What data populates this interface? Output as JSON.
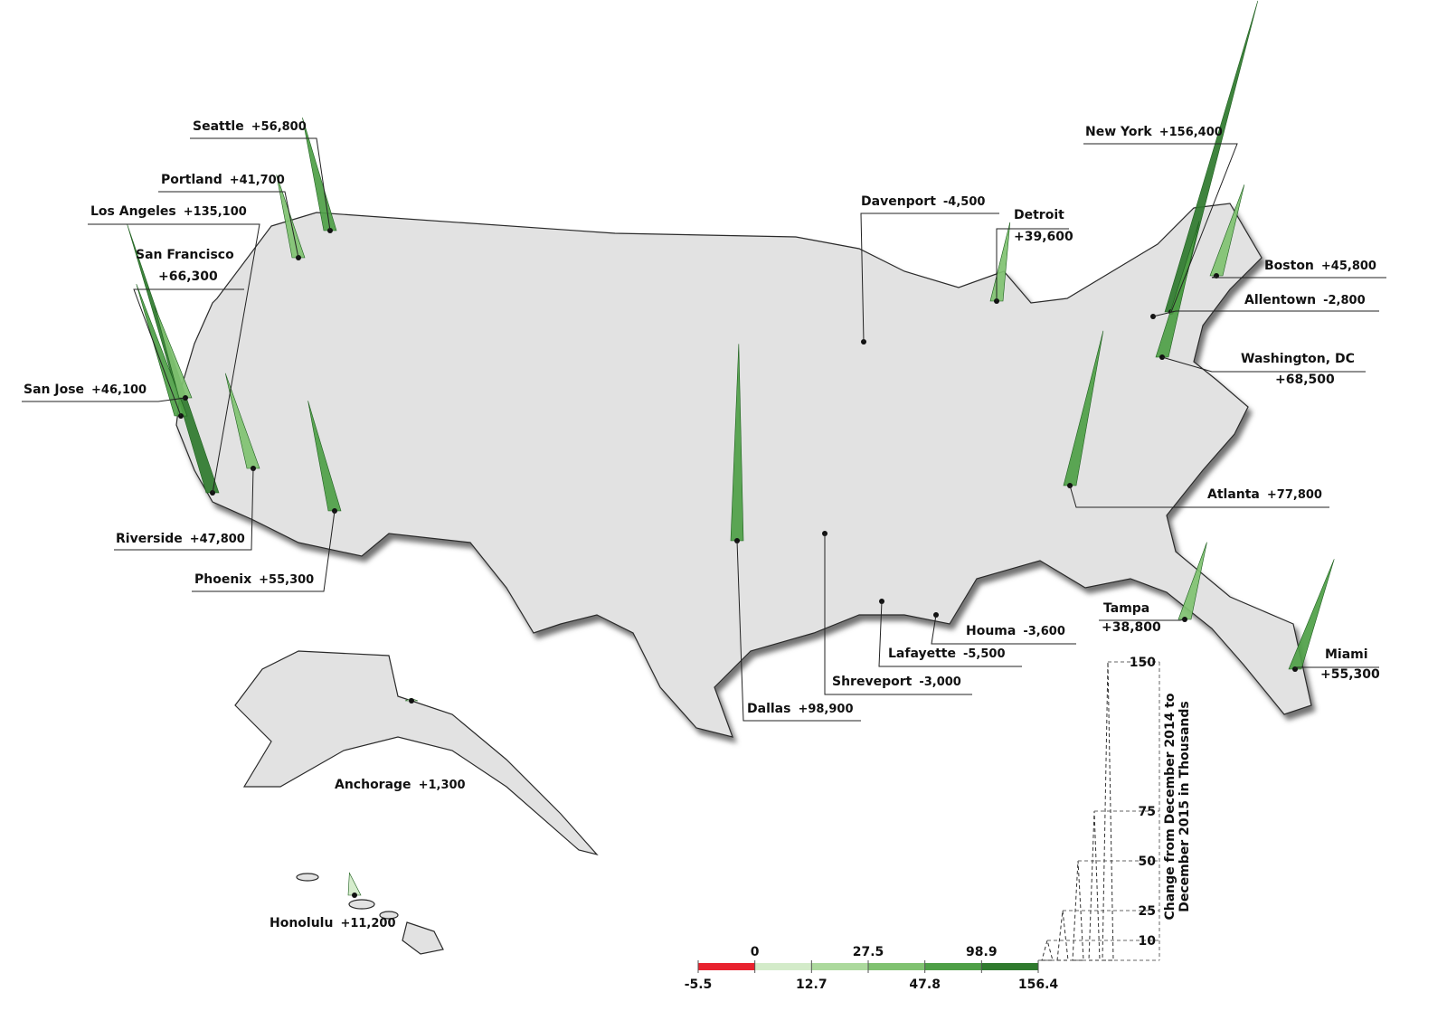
{
  "cities": [
    {
      "name": "Seattle",
      "change": 56800,
      "change_label": "+56,800"
    },
    {
      "name": "Portland",
      "change": 41700,
      "change_label": "+41,700"
    },
    {
      "name": "Los Angeles",
      "change": 135100,
      "change_label": "+135,100"
    },
    {
      "name": "San Francisco",
      "change": 66300,
      "change_label": "+66,300"
    },
    {
      "name": "San Jose",
      "change": 46100,
      "change_label": "+46,100"
    },
    {
      "name": "Riverside",
      "change": 47800,
      "change_label": "+47,800"
    },
    {
      "name": "Phoenix",
      "change": 55300,
      "change_label": "+55,300"
    },
    {
      "name": "Dallas",
      "change": 98900,
      "change_label": "+98,900"
    },
    {
      "name": "Houma",
      "change": -3600,
      "change_label": "-3,600"
    },
    {
      "name": "Lafayette",
      "change": -5500,
      "change_label": "-5,500"
    },
    {
      "name": "Shreveport",
      "change": -3000,
      "change_label": "-3,000"
    },
    {
      "name": "Davenport",
      "change": -4500,
      "change_label": "-4,500"
    },
    {
      "name": "Detroit",
      "change": 39600,
      "change_label": "+39,600"
    },
    {
      "name": "New York",
      "change": 156400,
      "change_label": "+156,400"
    },
    {
      "name": "Boston",
      "change": 45800,
      "change_label": "+45,800"
    },
    {
      "name": "Allentown",
      "change": -2800,
      "change_label": "-2,800"
    },
    {
      "name": "Washington, DC",
      "change": 68500,
      "change_label": "+68,500"
    },
    {
      "name": "Atlanta",
      "change": 77800,
      "change_label": "+77,800"
    },
    {
      "name": "Tampa",
      "change": 38800,
      "change_label": "+38,800"
    },
    {
      "name": "Miami",
      "change": 55300,
      "change_label": "+55,300"
    },
    {
      "name": "Anchorage",
      "change": 1300,
      "change_label": "+1,300"
    },
    {
      "name": "Honolulu",
      "change": 11200,
      "change_label": "+11,200"
    }
  ],
  "color_scale": {
    "breaks": [
      -5.5,
      0,
      12.7,
      27.5,
      47.8,
      98.9,
      156.4
    ],
    "colors": [
      "#e8222e",
      "#d3ebc9",
      "#acd99d",
      "#80c271",
      "#4e9f47",
      "#2f7a2e"
    ]
  },
  "spike_legend": {
    "title": [
      "Change from December 2014 to",
      "December 2015 in Thousands"
    ],
    "ticks": [
      10,
      25,
      50,
      75,
      150
    ]
  }
}
